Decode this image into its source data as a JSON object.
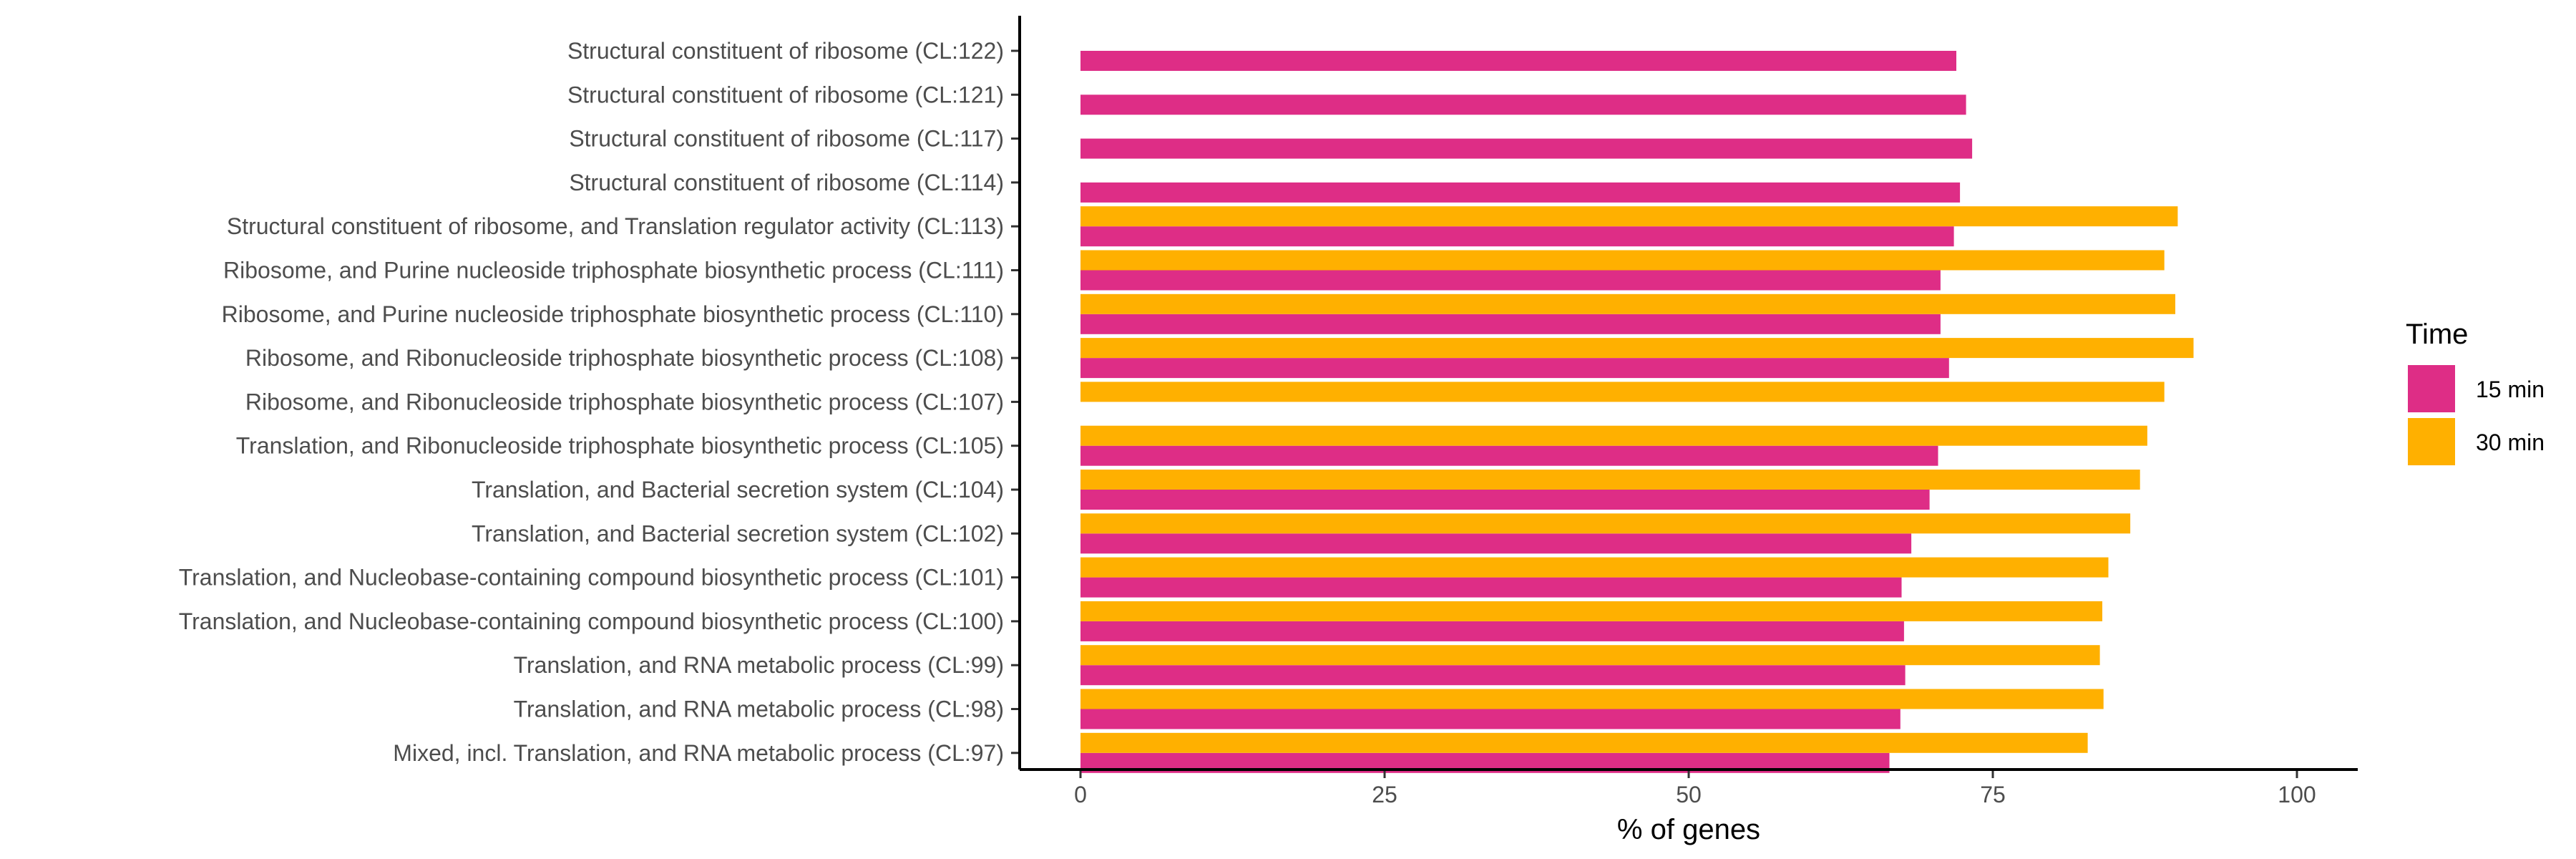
{
  "chart_data": {
    "type": "bar",
    "orientation": "horizontal",
    "categories": [
      "Structural constituent of ribosome (CL:122)",
      "Structural constituent of ribosome (CL:121)",
      "Structural constituent of ribosome (CL:117)",
      "Structural constituent of ribosome (CL:114)",
      "Structural constituent of ribosome, and Translation regulator activity (CL:113)",
      "Ribosome, and Purine nucleoside triphosphate biosynthetic process (CL:111)",
      "Ribosome, and Purine nucleoside triphosphate biosynthetic process (CL:110)",
      "Ribosome, and Ribonucleoside triphosphate biosynthetic process (CL:108)",
      "Ribosome, and Ribonucleoside triphosphate biosynthetic process (CL:107)",
      "Translation, and Ribonucleoside triphosphate biosynthetic process (CL:105)",
      "Translation, and Bacterial secretion system (CL:104)",
      "Translation, and Bacterial secretion system (CL:102)",
      "Translation, and Nucleobase-containing compound biosynthetic process (CL:101)",
      "Translation, and Nucleobase-containing compound biosynthetic process (CL:100)",
      "Translation, and RNA metabolic process (CL:99)",
      "Translation, and RNA metabolic process (CL:98)",
      "Mixed, incl. Translation, and RNA metabolic process (CL:97)"
    ],
    "series": [
      {
        "name": "15 min",
        "color": "#de2d86",
        "values": [
          72.0,
          72.8,
          73.3,
          72.3,
          71.8,
          70.7,
          70.7,
          71.4,
          null,
          70.5,
          69.8,
          68.3,
          67.5,
          67.7,
          67.8,
          67.4,
          66.5
        ]
      },
      {
        "name": "30 min",
        "color": "#ffb000",
        "values": [
          null,
          null,
          null,
          null,
          90.2,
          89.1,
          90.0,
          91.5,
          89.1,
          87.7,
          87.1,
          86.3,
          84.5,
          84.0,
          83.8,
          84.1,
          82.8
        ]
      }
    ],
    "xlabel": "% of genes",
    "ylabel": "",
    "xlim": [
      -5,
      105
    ],
    "xticks": [
      0,
      25,
      50,
      75,
      100
    ],
    "grid": false,
    "legend": {
      "title": "Time",
      "position": "right",
      "entries": [
        "15 min",
        "30 min"
      ]
    }
  }
}
